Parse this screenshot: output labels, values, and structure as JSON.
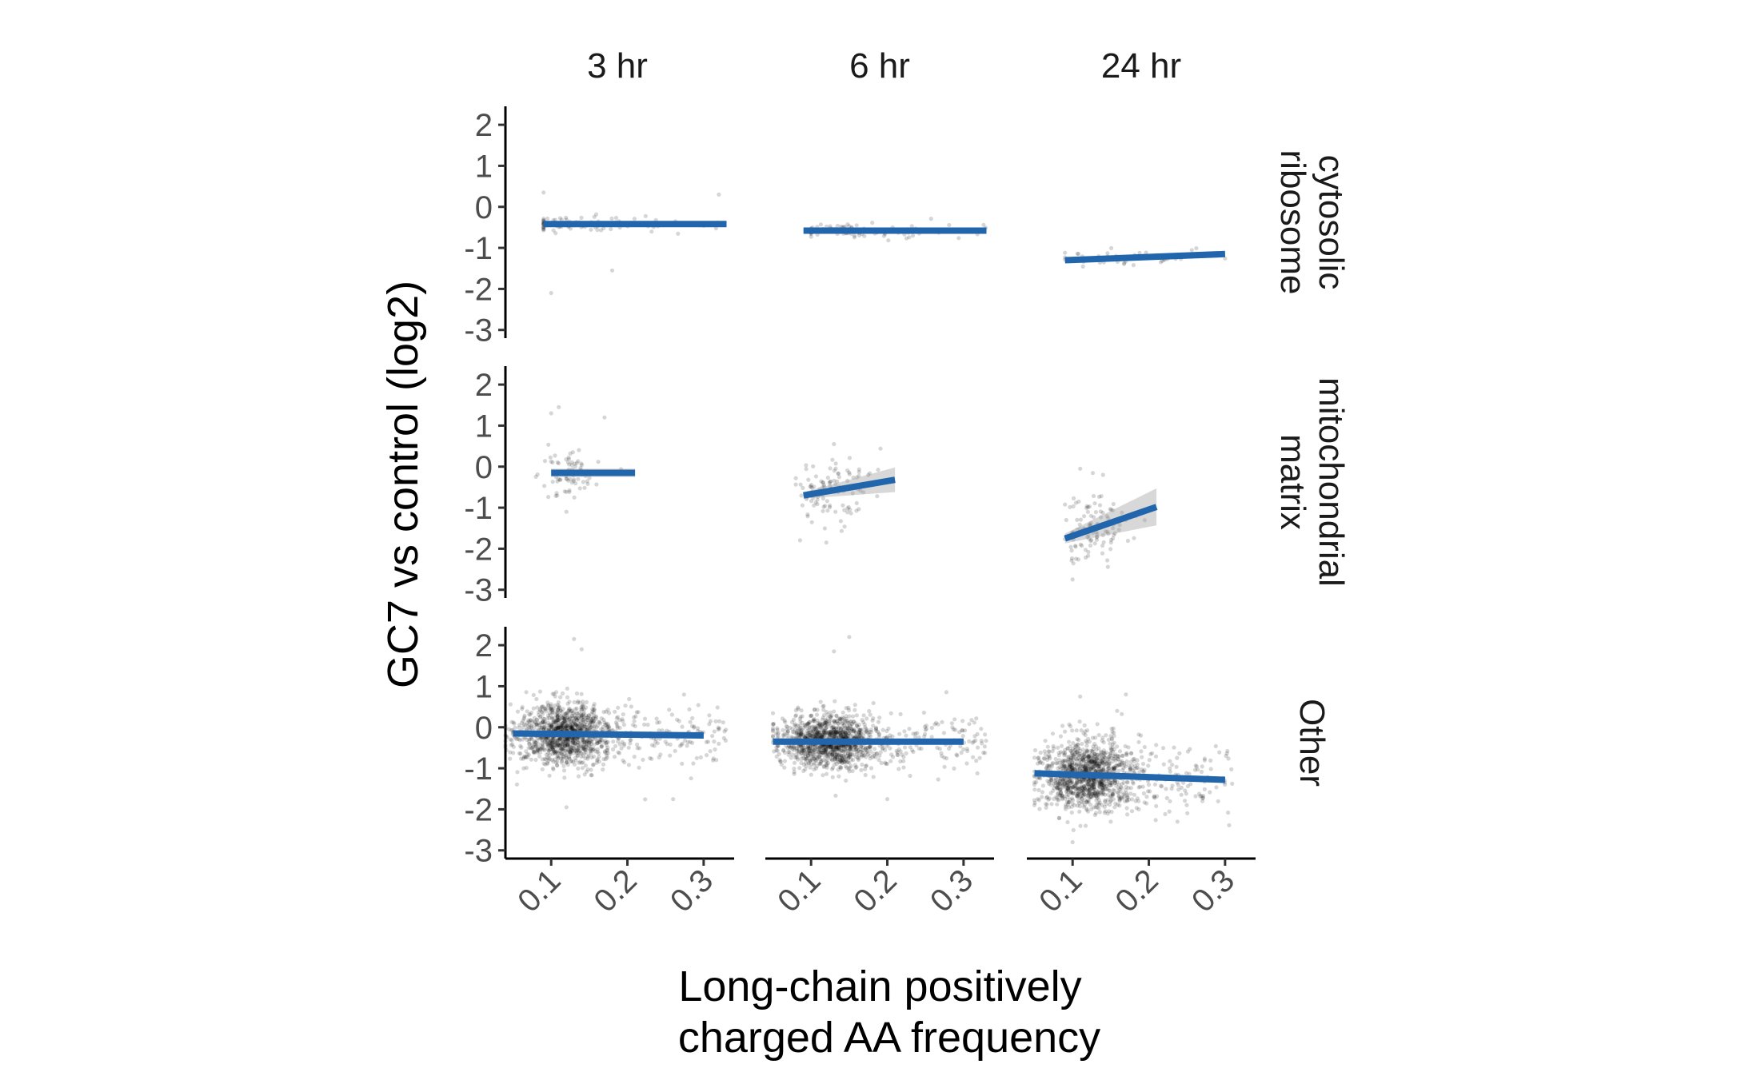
{
  "chart_data": {
    "type": "scatter",
    "facet_layout": "grid",
    "xlabel_lines": [
      "Long-chain positively",
      "charged AA frequency"
    ],
    "ylabel": "GC7 vs control (log2)",
    "xlim": [
      0.04,
      0.34
    ],
    "ylim": [
      -3.2,
      2.45
    ],
    "x_ticks": [
      0.1,
      0.2,
      0.3
    ],
    "x_tick_labels": [
      "0.1",
      "0.2",
      "0.3"
    ],
    "y_ticks": [
      2,
      1,
      0,
      -1,
      -2,
      -3
    ],
    "y_tick_labels": [
      "2",
      "1",
      "0",
      "-1",
      "-2",
      "-3"
    ],
    "columns": [
      "3 hr",
      "6 hr",
      "24 hr"
    ],
    "rows": [
      {
        "label_lines": [
          "cytosolic",
          "ribosome"
        ]
      },
      {
        "label_lines": [
          "mitochondrial",
          "matrix"
        ]
      },
      {
        "label_lines": [
          "Other"
        ]
      }
    ],
    "colors": {
      "fit_line": "#2166ac",
      "points": "#000000",
      "confidence_band": "#9e9e9e"
    },
    "panels": [
      {
        "row": 0,
        "col": 0,
        "fit": {
          "x": [
            0.09,
            0.33
          ],
          "y": [
            -0.42,
            -0.42
          ]
        },
        "band_halfwidth": [
          0.03,
          0.03
        ],
        "points": {
          "n": 90,
          "x_mean": 0.14,
          "x_sd": 0.05,
          "x_range": [
            0.09,
            0.33
          ],
          "y_sd": 0.1,
          "outliers": [
            [
              0.1,
              -2.1
            ],
            [
              0.18,
              -1.55
            ],
            [
              0.09,
              0.35
            ],
            [
              0.32,
              0.3
            ]
          ]
        }
      },
      {
        "row": 0,
        "col": 1,
        "fit": {
          "x": [
            0.09,
            0.33
          ],
          "y": [
            -0.58,
            -0.58
          ]
        },
        "band_halfwidth": [
          0.03,
          0.03
        ],
        "points": {
          "n": 95,
          "x_mean": 0.16,
          "x_sd": 0.05,
          "x_range": [
            0.1,
            0.33
          ],
          "y_sd": 0.09,
          "outliers": []
        }
      },
      {
        "row": 0,
        "col": 2,
        "fit": {
          "x": [
            0.09,
            0.3
          ],
          "y": [
            -1.3,
            -1.15
          ]
        },
        "band_halfwidth": [
          0.05,
          0.05
        ],
        "points": {
          "n": 40,
          "x_mean": 0.18,
          "x_sd": 0.05,
          "x_range": [
            0.09,
            0.3
          ],
          "y_sd": 0.12,
          "outliers": []
        }
      },
      {
        "row": 1,
        "col": 0,
        "fit": {
          "x": [
            0.1,
            0.21
          ],
          "y": [
            -0.15,
            -0.15
          ]
        },
        "band_halfwidth": [
          0.1,
          0.1
        ],
        "points": {
          "n": 75,
          "x_mean": 0.12,
          "x_sd": 0.018,
          "x_range": [
            0.08,
            0.2
          ],
          "y_sd": 0.28,
          "outliers": [
            [
              0.11,
              1.45
            ],
            [
              0.1,
              1.3
            ],
            [
              0.12,
              -1.1
            ],
            [
              0.17,
              1.2
            ]
          ]
        }
      },
      {
        "row": 1,
        "col": 1,
        "fit": {
          "x": [
            0.09,
            0.21
          ],
          "y": [
            -0.7,
            -0.32
          ]
        },
        "band_halfwidth": [
          0.08,
          0.3
        ],
        "points": {
          "n": 110,
          "x_mean": 0.125,
          "x_sd": 0.022,
          "x_range": [
            0.08,
            0.21
          ],
          "y_sd": 0.4,
          "outliers": [
            [
              0.12,
              -1.85
            ],
            [
              0.13,
              0.55
            ]
          ]
        }
      },
      {
        "row": 1,
        "col": 2,
        "fit": {
          "x": [
            0.09,
            0.21
          ],
          "y": [
            -1.75,
            -0.98
          ]
        },
        "band_halfwidth": [
          0.12,
          0.45
        ],
        "points": {
          "n": 110,
          "x_mean": 0.125,
          "x_sd": 0.022,
          "x_range": [
            0.09,
            0.21
          ],
          "y_sd": 0.45,
          "outliers": [
            [
              0.1,
              -2.75
            ],
            [
              0.11,
              -0.05
            ],
            [
              0.14,
              -0.2
            ]
          ]
        }
      },
      {
        "row": 2,
        "col": 0,
        "fit": {
          "x": [
            0.05,
            0.3
          ],
          "y": [
            -0.15,
            -0.2
          ]
        },
        "band_halfwidth": [
          0.03,
          0.05
        ],
        "points": {
          "n": 1300,
          "x_mean": 0.12,
          "x_sd": 0.03,
          "x_range": [
            0.04,
            0.33
          ],
          "y_sd": 0.38,
          "outliers": [
            [
              0.13,
              2.15
            ],
            [
              0.14,
              1.9
            ],
            [
              0.12,
              -1.95
            ],
            [
              0.26,
              -1.75
            ]
          ]
        }
      },
      {
        "row": 2,
        "col": 1,
        "fit": {
          "x": [
            0.05,
            0.3
          ],
          "y": [
            -0.35,
            -0.35
          ]
        },
        "band_halfwidth": [
          0.03,
          0.05
        ],
        "points": {
          "n": 1300,
          "x_mean": 0.125,
          "x_sd": 0.03,
          "x_range": [
            0.05,
            0.33
          ],
          "y_sd": 0.34,
          "outliers": [
            [
              0.15,
              2.2
            ],
            [
              0.13,
              1.85
            ],
            [
              0.2,
              -1.75
            ]
          ]
        }
      },
      {
        "row": 2,
        "col": 2,
        "fit": {
          "x": [
            0.05,
            0.3
          ],
          "y": [
            -1.12,
            -1.28
          ]
        },
        "band_halfwidth": [
          0.03,
          0.05
        ],
        "points": {
          "n": 1300,
          "x_mean": 0.12,
          "x_sd": 0.03,
          "x_range": [
            0.05,
            0.31
          ],
          "y_sd": 0.42,
          "outliers": [
            [
              0.1,
              -2.8
            ],
            [
              0.15,
              -2.3
            ],
            [
              0.11,
              0.75
            ],
            [
              0.17,
              0.8
            ]
          ]
        }
      }
    ]
  }
}
